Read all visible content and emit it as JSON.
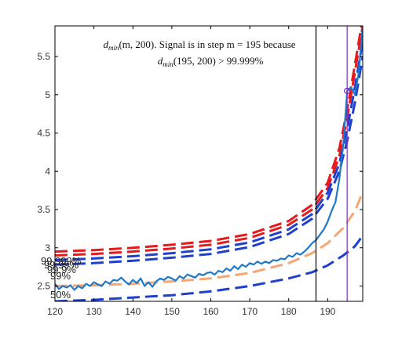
{
  "chart_data": {
    "type": "line",
    "xlim": [
      120,
      199
    ],
    "ylim": [
      2.3,
      5.9
    ],
    "x_ticks": [
      120,
      130,
      140,
      150,
      160,
      170,
      180,
      190
    ],
    "x_tick_labels": [
      "120",
      "130",
      "140",
      "150",
      "160",
      "170",
      "180",
      "190"
    ],
    "y_ticks": [
      2.5,
      3,
      3.5,
      4,
      4.5,
      5,
      5.5
    ],
    "y_tick_labels": [
      "2.5",
      "3",
      "3.5",
      "4",
      "4.5",
      "5",
      "5.5"
    ],
    "grid": false,
    "annotation": {
      "line1_var": "d",
      "line1_sub": "min",
      "line1_rest": "(m, 200). Signal is in step m = 195 because",
      "line2_var": "d",
      "line2_sub": "min",
      "line2_rest": "(195, 200) > 99.999%"
    },
    "percentile_labels": [
      "99.999%",
      "99.99%",
      "99.9%",
      "99%",
      "50%"
    ],
    "vertical_lines": [
      {
        "x": 187,
        "color": "#000000"
      },
      {
        "x": 195,
        "color": "#7b2fbe"
      }
    ],
    "marker": {
      "x": 195,
      "y": 5.05,
      "color": "#7b2fbe"
    },
    "threshold_curves": [
      {
        "label": "99.999%",
        "color": "#e41a1c",
        "points": [
          [
            120,
            2.95
          ],
          [
            130,
            2.97
          ],
          [
            140,
            3.0
          ],
          [
            150,
            3.04
          ],
          [
            160,
            3.09
          ],
          [
            170,
            3.18
          ],
          [
            180,
            3.35
          ],
          [
            186,
            3.56
          ],
          [
            190,
            3.85
          ],
          [
            193,
            4.3
          ],
          [
            195,
            4.8
          ],
          [
            197,
            5.4
          ],
          [
            199,
            6.0
          ]
        ]
      },
      {
        "label": "99.99%",
        "color": "#e41a1c",
        "points": [
          [
            120,
            2.9
          ],
          [
            130,
            2.92
          ],
          [
            140,
            2.95
          ],
          [
            150,
            2.99
          ],
          [
            160,
            3.04
          ],
          [
            170,
            3.13
          ],
          [
            180,
            3.3
          ],
          [
            186,
            3.5
          ],
          [
            190,
            3.78
          ],
          [
            193,
            4.2
          ],
          [
            195,
            4.7
          ],
          [
            197,
            5.3
          ],
          [
            199,
            5.9
          ]
        ]
      },
      {
        "label": "99.9%",
        "color": "#1f3fcf",
        "points": [
          [
            120,
            2.84
          ],
          [
            130,
            2.86
          ],
          [
            140,
            2.89
          ],
          [
            150,
            2.93
          ],
          [
            160,
            2.98
          ],
          [
            170,
            3.07
          ],
          [
            180,
            3.24
          ],
          [
            186,
            3.44
          ],
          [
            190,
            3.72
          ],
          [
            193,
            4.1
          ],
          [
            195,
            4.55
          ],
          [
            197,
            5.1
          ],
          [
            199,
            5.7
          ]
        ]
      },
      {
        "label": "99%",
        "color": "#1f3fcf",
        "points": [
          [
            120,
            2.78
          ],
          [
            130,
            2.8
          ],
          [
            140,
            2.83
          ],
          [
            150,
            2.87
          ],
          [
            160,
            2.92
          ],
          [
            170,
            3.01
          ],
          [
            180,
            3.18
          ],
          [
            186,
            3.38
          ],
          [
            190,
            3.64
          ],
          [
            193,
            4.0
          ],
          [
            195,
            4.4
          ],
          [
            197,
            4.9
          ],
          [
            199,
            5.5
          ]
        ]
      },
      {
        "label": "50%",
        "color": "#f4a774",
        "points": [
          [
            120,
            2.5
          ],
          [
            130,
            2.51
          ],
          [
            140,
            2.53
          ],
          [
            150,
            2.56
          ],
          [
            160,
            2.6
          ],
          [
            170,
            2.67
          ],
          [
            180,
            2.8
          ],
          [
            186,
            2.93
          ],
          [
            190,
            3.06
          ],
          [
            194,
            3.26
          ],
          [
            197,
            3.48
          ],
          [
            199,
            3.73
          ]
        ]
      },
      {
        "label": "",
        "color": "#1f3fcf",
        "points": [
          [
            120,
            2.3
          ],
          [
            130,
            2.32
          ],
          [
            140,
            2.35
          ],
          [
            150,
            2.38
          ],
          [
            160,
            2.43
          ],
          [
            170,
            2.5
          ],
          [
            180,
            2.6
          ],
          [
            186,
            2.68
          ],
          [
            190,
            2.77
          ],
          [
            194,
            2.9
          ],
          [
            197,
            3.02
          ],
          [
            199,
            3.16
          ]
        ]
      }
    ],
    "signal": {
      "color": "#1f78c8",
      "points": [
        [
          120,
          2.53
        ],
        [
          121,
          2.46
        ],
        [
          122,
          2.5
        ],
        [
          123,
          2.48
        ],
        [
          124,
          2.51
        ],
        [
          125,
          2.45
        ],
        [
          126,
          2.5
        ],
        [
          127,
          2.47
        ],
        [
          128,
          2.53
        ],
        [
          129,
          2.5
        ],
        [
          130,
          2.55
        ],
        [
          131,
          2.52
        ],
        [
          132,
          2.5
        ],
        [
          133,
          2.56
        ],
        [
          134,
          2.53
        ],
        [
          135,
          2.58
        ],
        [
          136,
          2.57
        ],
        [
          137,
          2.61
        ],
        [
          138,
          2.56
        ],
        [
          139,
          2.52
        ],
        [
          140,
          2.58
        ],
        [
          141,
          2.54
        ],
        [
          142,
          2.6
        ],
        [
          143,
          2.5
        ],
        [
          144,
          2.55
        ],
        [
          145,
          2.49
        ],
        [
          146,
          2.56
        ],
        [
          147,
          2.6
        ],
        [
          148,
          2.58
        ],
        [
          149,
          2.62
        ],
        [
          150,
          2.6
        ],
        [
          151,
          2.57
        ],
        [
          152,
          2.63
        ],
        [
          153,
          2.6
        ],
        [
          154,
          2.65
        ],
        [
          155,
          2.63
        ],
        [
          156,
          2.61
        ],
        [
          157,
          2.66
        ],
        [
          158,
          2.64
        ],
        [
          159,
          2.67
        ],
        [
          160,
          2.68
        ],
        [
          161,
          2.65
        ],
        [
          162,
          2.7
        ],
        [
          163,
          2.68
        ],
        [
          164,
          2.73
        ],
        [
          165,
          2.7
        ],
        [
          166,
          2.76
        ],
        [
          167,
          2.72
        ],
        [
          168,
          2.78
        ],
        [
          169,
          2.75
        ],
        [
          170,
          2.8
        ],
        [
          171,
          2.78
        ],
        [
          172,
          2.82
        ],
        [
          173,
          2.79
        ],
        [
          174,
          2.82
        ],
        [
          175,
          2.8
        ],
        [
          176,
          2.84
        ],
        [
          177,
          2.83
        ],
        [
          178,
          2.86
        ],
        [
          179,
          2.85
        ],
        [
          180,
          2.9
        ],
        [
          181,
          2.88
        ],
        [
          182,
          2.93
        ],
        [
          183,
          2.91
        ],
        [
          184,
          2.95
        ],
        [
          185,
          3.0
        ],
        [
          186,
          3.06
        ],
        [
          187,
          3.1
        ],
        [
          188,
          3.17
        ],
        [
          189,
          3.24
        ],
        [
          190,
          3.34
        ],
        [
          191,
          3.48
        ],
        [
          192,
          3.6
        ],
        [
          193,
          3.9
        ],
        [
          194,
          4.35
        ],
        [
          195,
          5.05
        ],
        [
          196,
          5.1
        ],
        [
          197,
          5.0
        ],
        [
          198,
          5.3
        ],
        [
          199,
          5.9
        ]
      ]
    }
  }
}
